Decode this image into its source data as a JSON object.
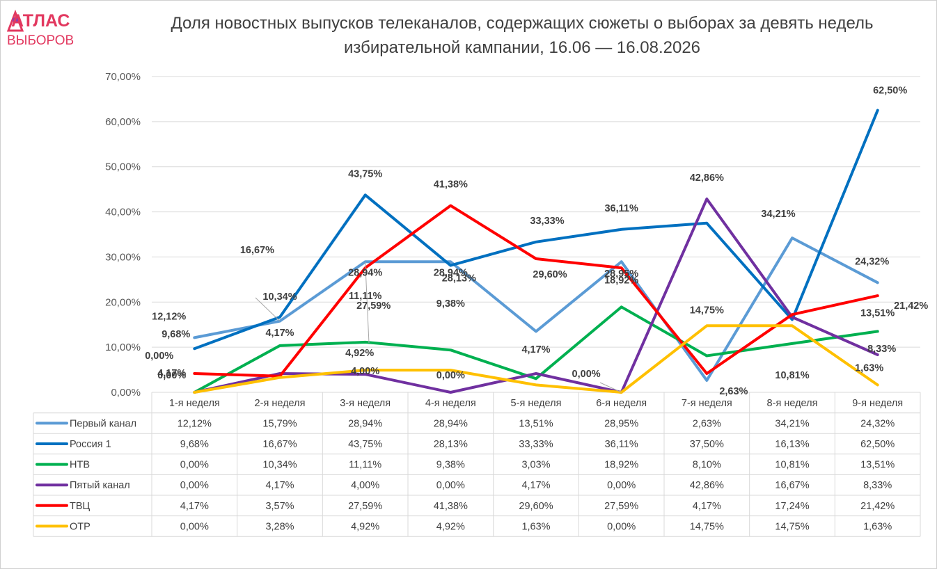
{
  "title": "Доля новостных выпусков телеканалов, содержащих сюжеты о выборах за девять недель избирательной кампании, 16.06 — 16.08.2026",
  "logo": {
    "line1": "АТЛАС",
    "line2": "ВЫБОРОВ",
    "color": "#e2385f"
  },
  "chart_data": {
    "type": "line",
    "title": "Доля новостных выпусков телеканалов, содержащих сюжеты о выборах за девять недель избирательной кампании, 16.06 — 16.08.2026",
    "xlabel": "",
    "ylabel": "",
    "ylim": [
      0,
      70
    ],
    "yticks": [
      0,
      10,
      20,
      30,
      40,
      50,
      60,
      70
    ],
    "ytick_labels": [
      "0,00%",
      "10,00%",
      "20,00%",
      "30,00%",
      "40,00%",
      "50,00%",
      "60,00%",
      "70,00%"
    ],
    "grid": true,
    "legend": "data-table-below",
    "categories": [
      "1-я неделя",
      "2-я неделя",
      "3-я неделя",
      "4-я неделя",
      "5-я неделя",
      "6-я неделя",
      "7-я неделя",
      "8-я неделя",
      "9-я неделя"
    ],
    "series": [
      {
        "name": "Первый канал",
        "color": "#5b9bd5",
        "values": [
          12.12,
          15.79,
          28.94,
          28.94,
          13.51,
          28.95,
          2.63,
          34.21,
          24.32
        ],
        "labels": [
          "12,12%",
          "15,79%",
          "28,94%",
          "28,94%",
          "13,51%",
          "28,95%",
          "2,63%",
          "34,21%",
          "24,32%"
        ],
        "shown_labels": [
          "12,12%",
          "",
          "28,94%",
          "28,94%",
          "",
          "28,95%",
          "2,63%",
          "34,21%",
          "24,32%"
        ]
      },
      {
        "name": "Россия 1",
        "color": "#0070c0",
        "values": [
          9.68,
          16.67,
          43.75,
          28.13,
          33.33,
          36.11,
          37.5,
          16.13,
          62.5
        ],
        "labels": [
          "9,68%",
          "16,67%",
          "43,75%",
          "28,13%",
          "33,33%",
          "36,11%",
          "37,50%",
          "16,13%",
          "62,50%"
        ],
        "shown_labels": [
          "9,68%",
          "16,67%",
          "43,75%",
          "28,13%",
          "33,33%",
          "36,11%",
          "",
          "",
          "62,50%"
        ]
      },
      {
        "name": "НТВ",
        "color": "#00b050",
        "values": [
          0.0,
          10.34,
          11.11,
          9.38,
          3.03,
          18.92,
          8.1,
          10.81,
          13.51
        ],
        "labels": [
          "0,00%",
          "10,34%",
          "11,11%",
          "9,38%",
          "3,03%",
          "18,92%",
          "8,10%",
          "10,81%",
          "13,51%"
        ],
        "shown_labels": [
          "0,00%",
          "10,34%",
          "11,11%",
          "9,38%",
          "",
          "18,92%",
          "",
          "10,81%",
          "13,51%"
        ]
      },
      {
        "name": "Пятый канал",
        "color": "#7030a0",
        "values": [
          0.0,
          4.17,
          4.0,
          0.0,
          4.17,
          0.0,
          42.86,
          16.67,
          8.33
        ],
        "labels": [
          "0,00%",
          "4,17%",
          "4,00%",
          "0,00%",
          "4,17%",
          "0,00%",
          "42,86%",
          "16,67%",
          "8,33%"
        ],
        "shown_labels": [
          "",
          "4,17%",
          "4,00%",
          "0,00%",
          "4,17%",
          "0,00%",
          "42,86%",
          "",
          "8,33%"
        ]
      },
      {
        "name": "ТВЦ",
        "color": "#ff0000",
        "values": [
          4.17,
          3.57,
          27.59,
          41.38,
          29.6,
          27.59,
          4.17,
          17.24,
          21.42
        ],
        "labels": [
          "4,17%",
          "3,57%",
          "27,59%",
          "41,38%",
          "29,60%",
          "27,59%",
          "4,17%",
          "17,24%",
          "21,42%"
        ],
        "shown_labels": [
          "4,17%",
          "",
          "27,59%",
          "41,38%",
          "29,60%",
          "",
          "",
          "",
          "21,42%"
        ]
      },
      {
        "name": "ОТР",
        "color": "#ffc000",
        "values": [
          0.0,
          3.28,
          4.92,
          4.92,
          1.63,
          0.0,
          14.75,
          14.75,
          1.63
        ],
        "labels": [
          "0,00%",
          "3,28%",
          "4,92%",
          "4,92%",
          "1,63%",
          "0,00%",
          "14,75%",
          "14,75%",
          "1,63%"
        ],
        "shown_labels": [
          "0,00%",
          "",
          "4,92%",
          "",
          "",
          "",
          "14,75%",
          "",
          "1,63%"
        ]
      }
    ]
  }
}
